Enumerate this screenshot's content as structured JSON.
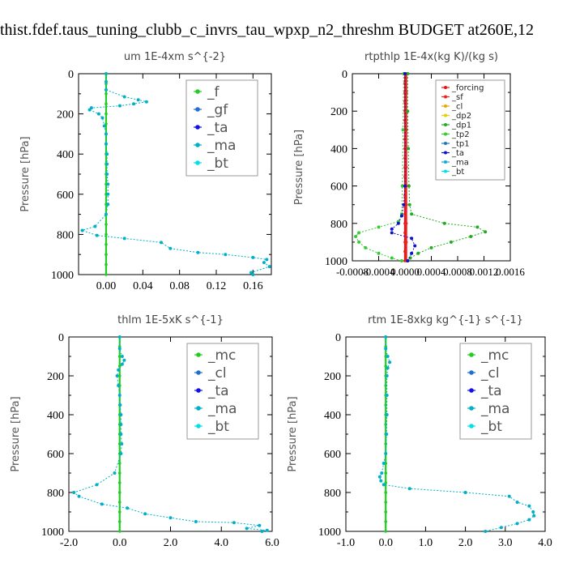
{
  "page_title": "thist.fdef.taus_tuning_clubb_c_invrs_tau_wpxp_n2_threshm  BUDGET at260E,12",
  "colors": {
    "f": "#22cc22",
    "gf": "#1e6fd0",
    "ta": "#1010ee",
    "ma": "#00b0c8",
    "bt": "#00e0e8",
    "mc": "#22cc22",
    "cl": "#1e6fd0",
    "forcing": "#ee1111",
    "sf": "#ee2222",
    "cl_small": "#e8a800",
    "dp2": "#e0d000",
    "dp1": "#22aa22",
    "tp2": "#33cc33",
    "tp1": "#2277bb",
    "ta_small": "#1111cc",
    "ma_small": "#11aadd",
    "bt_small": "#00e0e8"
  },
  "chart_data": [
    {
      "type": "line",
      "title": "um   1E-4xm  s^{-2}",
      "ylabel": "Pressure [hPa]",
      "xlim": [
        -0.03,
        0.18
      ],
      "ylim": [
        1000,
        0
      ],
      "xticks": [
        0.0,
        0.04,
        0.08,
        0.12,
        0.16
      ],
      "xticklabels": [
        "0.00",
        "0.04",
        "0.08",
        "0.12",
        "0.16"
      ],
      "yticks": [
        0,
        200,
        400,
        600,
        800,
        1000
      ],
      "yticklabels": [
        "0",
        "200",
        "400",
        "600",
        "800",
        "1000"
      ],
      "legend_placement": "top-right",
      "legend_style": "big",
      "series": [
        {
          "name": "_f",
          "color_key": "f",
          "x": [
            0,
            0,
            0,
            0,
            0,
            0,
            0,
            0,
            0,
            0,
            0,
            0,
            0,
            0,
            0,
            0,
            0,
            0,
            0,
            0,
            0
          ],
          "y": [
            0,
            50,
            100,
            150,
            200,
            250,
            300,
            350,
            400,
            450,
            500,
            550,
            600,
            650,
            700,
            750,
            800,
            850,
            900,
            950,
            1000
          ]
        },
        {
          "name": "_gf",
          "color_key": "gf",
          "x": [],
          "y": []
        },
        {
          "name": "_ta",
          "color_key": "ta",
          "x": [],
          "y": []
        },
        {
          "name": "_ma",
          "color_key": "ma",
          "x": [
            0,
            0,
            0,
            0.02,
            0.035,
            0.044,
            0.03,
            0.015,
            -0.016,
            -0.018,
            -0.008,
            -0.004,
            -0.002,
            0,
            0,
            0.001,
            0.001,
            0.001,
            0.002,
            0.002,
            0.002,
            0,
            -0.012,
            -0.026,
            -0.01,
            0.02,
            0.06,
            0.07,
            0.1,
            0.13,
            0.16,
            0.175,
            0.172,
            0.178,
            0.158,
            0.16
          ],
          "y": [
            0,
            40,
            80,
            115,
            130,
            140,
            150,
            160,
            170,
            180,
            200,
            220,
            260,
            300,
            350,
            400,
            450,
            500,
            550,
            600,
            650,
            700,
            760,
            780,
            805,
            820,
            840,
            870,
            890,
            900,
            915,
            925,
            940,
            960,
            990,
            1000
          ]
        },
        {
          "name": "_bt",
          "color_key": "bt",
          "x": [],
          "y": []
        }
      ]
    },
    {
      "type": "line",
      "title": "rtpthlp   1E-4x(kg K)/(kg s)",
      "ylabel": "Pressure [hPa]",
      "xlim": [
        -0.0008,
        0.0016
      ],
      "ylim": [
        1000,
        0
      ],
      "xticks": [
        -0.0008,
        -0.0004,
        0.0,
        0.0004,
        0.0008,
        0.0012,
        0.0016
      ],
      "xticklabels": [
        "-0.0008",
        "-0.0004",
        "0.0000",
        "0.0004",
        "0.0008",
        "0.0012",
        "0.0016"
      ],
      "yticks": [
        0,
        200,
        400,
        600,
        800,
        1000
      ],
      "yticklabels": [
        "0",
        "200",
        "400",
        "600",
        "800",
        "1000"
      ],
      "legend_placement": "top-right",
      "legend_style": "small",
      "series": [
        {
          "name": "_forcing",
          "color_key": "forcing",
          "x": [
            0,
            0,
            0,
            0,
            0,
            0,
            0,
            0,
            0,
            0,
            0,
            0,
            0,
            0,
            0,
            0,
            0,
            0,
            0,
            0,
            0
          ],
          "y": [
            0,
            50,
            100,
            150,
            200,
            250,
            300,
            350,
            400,
            450,
            500,
            550,
            600,
            650,
            700,
            750,
            800,
            850,
            900,
            950,
            1000
          ]
        },
        {
          "name": "_sf",
          "color_key": "sf",
          "x": [
            2e-05,
            2e-05,
            2e-05,
            2e-05,
            2e-05,
            2e-05,
            2e-05,
            2e-05,
            2e-05,
            2e-05,
            2e-05
          ],
          "y": [
            0,
            100,
            200,
            300,
            400,
            500,
            600,
            700,
            800,
            900,
            1000
          ]
        },
        {
          "name": "_cl",
          "color_key": "cl_small",
          "x": [],
          "y": []
        },
        {
          "name": "_dp2",
          "color_key": "dp2",
          "x": [],
          "y": []
        },
        {
          "name": "_dp1",
          "color_key": "dp1",
          "x": [
            4e-05,
            4e-05,
            5e-05,
            6e-05,
            7e-05,
            0.0001,
            0.0006,
            0.0011,
            0.00122,
            0.001,
            0.0007,
            0.0004,
            0.0002,
            8e-05,
            4e-05
          ],
          "y": [
            0,
            200,
            400,
            600,
            700,
            750,
            800,
            820,
            845,
            870,
            900,
            930,
            960,
            985,
            1000
          ]
        },
        {
          "name": "_tp2",
          "color_key": "tp2",
          "x": [
            -2e-05,
            -3e-05,
            -4e-05,
            -5e-05,
            -0.0001,
            -0.0004,
            -0.0007,
            -0.00075,
            -0.0007,
            -0.0006,
            -0.0004,
            -0.0002,
            -5e-05
          ],
          "y": [
            0,
            300,
            600,
            750,
            790,
            820,
            850,
            870,
            900,
            930,
            960,
            985,
            1000
          ]
        },
        {
          "name": "_tp1",
          "color_key": "tp1",
          "x": [],
          "y": []
        },
        {
          "name": "_ta",
          "color_key": "ta_small",
          "x": [
            0,
            0,
            -2e-05,
            -5e-05,
            -0.0001,
            -0.0002,
            -0.0002,
            0.0001,
            0.00015,
            0.0001,
            4e-05
          ],
          "y": [
            0,
            600,
            700,
            760,
            800,
            830,
            850,
            880,
            920,
            960,
            1000
          ]
        },
        {
          "name": "_ma",
          "color_key": "ma_small",
          "x": [],
          "y": []
        },
        {
          "name": "_bt",
          "color_key": "bt_small",
          "x": [],
          "y": []
        }
      ]
    },
    {
      "type": "line",
      "title": "thlm   1E-5xK  s^{-1}",
      "ylabel": "Pressure [hPa]",
      "xlim": [
        -2.0,
        6.0
      ],
      "ylim": [
        1000,
        0
      ],
      "xticks": [
        -2.0,
        0.0,
        2.0,
        4.0,
        6.0
      ],
      "xticklabels": [
        "-2.0",
        "0.0",
        "2.0",
        "4.0",
        "6.0"
      ],
      "yticks": [
        0,
        200,
        400,
        600,
        800,
        1000
      ],
      "yticklabels": [
        "0",
        "200",
        "400",
        "600",
        "800",
        "1000"
      ],
      "legend_placement": "top-right",
      "legend_style": "big",
      "series": [
        {
          "name": "_mc",
          "color_key": "mc",
          "x": [
            0,
            0,
            0,
            0,
            0,
            0,
            0,
            0,
            0,
            0,
            0,
            0,
            0,
            0,
            0,
            0,
            0,
            0,
            0,
            0,
            0
          ],
          "y": [
            0,
            50,
            100,
            150,
            200,
            250,
            300,
            350,
            400,
            450,
            500,
            550,
            600,
            650,
            700,
            750,
            800,
            850,
            900,
            950,
            1000
          ]
        },
        {
          "name": "_cl",
          "color_key": "cl",
          "x": [],
          "y": []
        },
        {
          "name": "_ta",
          "color_key": "ta",
          "x": [],
          "y": []
        },
        {
          "name": "_ma",
          "color_key": "ma",
          "x": [
            0,
            0,
            0.1,
            0.18,
            0.1,
            -0.05,
            -0.1,
            -0.05,
            0,
            0.02,
            0.05,
            0.05,
            0.05,
            0.08,
            0.05,
            -0.2,
            -0.9,
            -1.8,
            -1.6,
            -0.7,
            0.3,
            1.0,
            2.0,
            3.0,
            4.5,
            5.5,
            5.0,
            5.8,
            5.6
          ],
          "y": [
            0,
            60,
            100,
            120,
            140,
            170,
            200,
            250,
            300,
            350,
            400,
            450,
            500,
            550,
            600,
            700,
            760,
            800,
            820,
            860,
            880,
            910,
            930,
            950,
            955,
            970,
            985,
            995,
            1000
          ]
        },
        {
          "name": "_bt",
          "color_key": "bt",
          "x": [],
          "y": []
        }
      ]
    },
    {
      "type": "line",
      "title": "rtm   1E-8xkg  kg^{-1}  s^{-1}",
      "ylabel": "Pressure [hPa]",
      "xlim": [
        -1.0,
        4.0
      ],
      "ylim": [
        1000,
        0
      ],
      "xticks": [
        -1.0,
        0.0,
        1.0,
        2.0,
        3.0,
        4.0
      ],
      "xticklabels": [
        "-1.0",
        "0.0",
        "1.0",
        "2.0",
        "3.0",
        "4.0"
      ],
      "yticks": [
        0,
        200,
        400,
        600,
        800,
        1000
      ],
      "yticklabels": [
        "0",
        "200",
        "400",
        "600",
        "800",
        "1000"
      ],
      "legend_placement": "top-right",
      "legend_style": "big",
      "series": [
        {
          "name": "_mc",
          "color_key": "mc",
          "x": [
            0,
            0,
            0,
            0,
            0,
            0,
            0,
            0,
            0,
            0,
            0,
            0,
            0,
            0,
            0,
            0,
            0,
            0,
            0,
            0,
            0
          ],
          "y": [
            0,
            50,
            100,
            150,
            200,
            250,
            300,
            350,
            400,
            450,
            500,
            550,
            600,
            650,
            700,
            750,
            800,
            850,
            900,
            950,
            1000
          ]
        },
        {
          "name": "_cl",
          "color_key": "cl",
          "x": [],
          "y": []
        },
        {
          "name": "_ta",
          "color_key": "ta",
          "x": [],
          "y": []
        },
        {
          "name": "_ma",
          "color_key": "ma",
          "x": [
            0,
            0,
            0.05,
            0.1,
            0.05,
            0.03,
            0.03,
            0.03,
            0.02,
            0,
            -0.05,
            -0.1,
            -0.15,
            -0.12,
            -0.05,
            0.6,
            2.0,
            3.1,
            3.3,
            3.6,
            3.7,
            3.72,
            3.6,
            3.3,
            2.9,
            2.5
          ],
          "y": [
            0,
            60,
            100,
            130,
            160,
            200,
            300,
            400,
            500,
            600,
            650,
            700,
            720,
            740,
            760,
            780,
            800,
            820,
            850,
            870,
            900,
            920,
            940,
            960,
            980,
            1000
          ]
        },
        {
          "name": "_bt",
          "color_key": "bt",
          "x": [],
          "y": []
        }
      ]
    }
  ]
}
